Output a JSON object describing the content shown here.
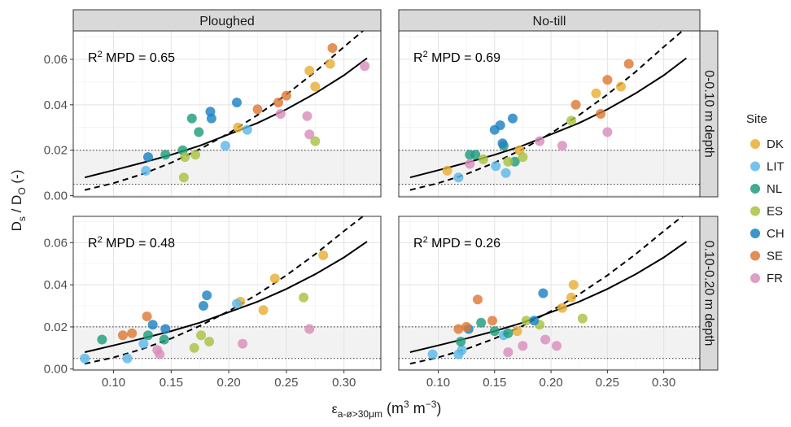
{
  "chart_data": {
    "type": "scatter",
    "columns": [
      "Ploughed",
      "No-till"
    ],
    "rows": [
      "0-0.10 m depth",
      "0.10-0.20 m depth"
    ],
    "ylabel": "Ds / DO (-)",
    "ylabel_parts": {
      "main1": "D",
      "sub1": "s",
      "mid": " / D",
      "sub2": "O",
      "tail": " (-)"
    },
    "xlabel_parts": {
      "main": "ε",
      "sub": "a-ø>30μm",
      "tail": " (m",
      "sup1": "3",
      "mid": " m",
      "sup2": "−3",
      "end": ")"
    },
    "xlim": [
      0.065,
      0.332
    ],
    "ylim": [
      -0.0005,
      0.0725
    ],
    "x_ticks": [
      0.1,
      0.15,
      0.2,
      0.25,
      0.3
    ],
    "x_tick_labels": [
      "0.10",
      "0.15",
      "0.20",
      "0.25",
      "0.30"
    ],
    "y_ticks": [
      0.0,
      0.02,
      0.04,
      0.06
    ],
    "y_tick_labels": [
      "0.00",
      "0.02",
      "0.04",
      "0.06"
    ],
    "thresholds": [
      0.005,
      0.02
    ],
    "grid": true,
    "legend": {
      "title": "Site",
      "placement": "right",
      "entries": [
        {
          "name": "DK",
          "color": "#E8AE33"
        },
        {
          "name": "LIT",
          "color": "#5BB8EA"
        },
        {
          "name": "NL",
          "color": "#1E9E7D"
        },
        {
          "name": "ES",
          "color": "#A8C23F"
        },
        {
          "name": "CH",
          "color": "#1C82C4"
        },
        {
          "name": "SE",
          "color": "#DD7A36"
        },
        {
          "name": "FR",
          "color": "#D98DBC"
        }
      ]
    },
    "curves": {
      "solid": {
        "x": [
          0.075,
          0.1,
          0.125,
          0.15,
          0.175,
          0.2,
          0.225,
          0.25,
          0.275,
          0.3,
          0.32
        ],
        "y": [
          0.008,
          0.0112,
          0.0145,
          0.018,
          0.022,
          0.027,
          0.032,
          0.038,
          0.045,
          0.053,
          0.0605
        ]
      },
      "dashed": {
        "x": [
          0.075,
          0.1,
          0.125,
          0.15,
          0.175,
          0.2,
          0.225,
          0.25,
          0.275,
          0.3,
          0.32
        ],
        "y": [
          0.0025,
          0.0055,
          0.0095,
          0.0145,
          0.0205,
          0.0275,
          0.0355,
          0.0445,
          0.0545,
          0.0655,
          0.074
        ]
      }
    },
    "panels": [
      {
        "column": "Ploughed",
        "row": "0-0.10 m depth",
        "r2_label": "R² MPD = 0.65",
        "points": [
          {
            "site": "DK",
            "x": 0.208,
            "y": 0.03
          },
          {
            "site": "DK",
            "x": 0.27,
            "y": 0.055
          },
          {
            "site": "DK",
            "x": 0.275,
            "y": 0.048
          },
          {
            "site": "DK",
            "x": 0.288,
            "y": 0.058
          },
          {
            "site": "LIT",
            "x": 0.128,
            "y": 0.011
          },
          {
            "site": "LIT",
            "x": 0.197,
            "y": 0.022
          },
          {
            "site": "LIT",
            "x": 0.216,
            "y": 0.029
          },
          {
            "site": "NL",
            "x": 0.145,
            "y": 0.018
          },
          {
            "site": "NL",
            "x": 0.16,
            "y": 0.02
          },
          {
            "site": "NL",
            "x": 0.168,
            "y": 0.034
          },
          {
            "site": "NL",
            "x": 0.174,
            "y": 0.028
          },
          {
            "site": "ES",
            "x": 0.161,
            "y": 0.008
          },
          {
            "site": "ES",
            "x": 0.162,
            "y": 0.017
          },
          {
            "site": "ES",
            "x": 0.171,
            "y": 0.018
          },
          {
            "site": "ES",
            "x": 0.275,
            "y": 0.024
          },
          {
            "site": "CH",
            "x": 0.13,
            "y": 0.017
          },
          {
            "site": "CH",
            "x": 0.184,
            "y": 0.037
          },
          {
            "site": "CH",
            "x": 0.185,
            "y": 0.034
          },
          {
            "site": "CH",
            "x": 0.207,
            "y": 0.041
          },
          {
            "site": "SE",
            "x": 0.225,
            "y": 0.038
          },
          {
            "site": "SE",
            "x": 0.243,
            "y": 0.041
          },
          {
            "site": "SE",
            "x": 0.25,
            "y": 0.044
          },
          {
            "site": "SE",
            "x": 0.29,
            "y": 0.065
          },
          {
            "site": "FR",
            "x": 0.245,
            "y": 0.036
          },
          {
            "site": "FR",
            "x": 0.268,
            "y": 0.035
          },
          {
            "site": "FR",
            "x": 0.27,
            "y": 0.027
          },
          {
            "site": "FR",
            "x": 0.318,
            "y": 0.057
          }
        ]
      },
      {
        "column": "No-till",
        "row": "0-0.10 m depth",
        "r2_label": "R² MPD = 0.69",
        "points": [
          {
            "site": "DK",
            "x": 0.108,
            "y": 0.011
          },
          {
            "site": "DK",
            "x": 0.172,
            "y": 0.02
          },
          {
            "site": "DK",
            "x": 0.24,
            "y": 0.045
          },
          {
            "site": "DK",
            "x": 0.262,
            "y": 0.048
          },
          {
            "site": "LIT",
            "x": 0.118,
            "y": 0.008
          },
          {
            "site": "LIT",
            "x": 0.151,
            "y": 0.013
          },
          {
            "site": "LIT",
            "x": 0.16,
            "y": 0.01
          },
          {
            "site": "NL",
            "x": 0.128,
            "y": 0.018
          },
          {
            "site": "NL",
            "x": 0.133,
            "y": 0.018
          },
          {
            "site": "NL",
            "x": 0.158,
            "y": 0.022
          },
          {
            "site": "NL",
            "x": 0.168,
            "y": 0.015
          },
          {
            "site": "ES",
            "x": 0.14,
            "y": 0.016
          },
          {
            "site": "ES",
            "x": 0.162,
            "y": 0.015
          },
          {
            "site": "ES",
            "x": 0.175,
            "y": 0.017
          },
          {
            "site": "ES",
            "x": 0.218,
            "y": 0.033
          },
          {
            "site": "CH",
            "x": 0.15,
            "y": 0.029
          },
          {
            "site": "CH",
            "x": 0.155,
            "y": 0.031
          },
          {
            "site": "CH",
            "x": 0.157,
            "y": 0.023
          },
          {
            "site": "CH",
            "x": 0.166,
            "y": 0.034
          },
          {
            "site": "SE",
            "x": 0.222,
            "y": 0.04
          },
          {
            "site": "SE",
            "x": 0.244,
            "y": 0.036
          },
          {
            "site": "SE",
            "x": 0.25,
            "y": 0.051
          },
          {
            "site": "SE",
            "x": 0.269,
            "y": 0.058
          },
          {
            "site": "FR",
            "x": 0.128,
            "y": 0.014
          },
          {
            "site": "FR",
            "x": 0.19,
            "y": 0.024
          },
          {
            "site": "FR",
            "x": 0.21,
            "y": 0.022
          },
          {
            "site": "FR",
            "x": 0.25,
            "y": 0.028
          }
        ]
      },
      {
        "column": "Ploughed",
        "row": "0.10-0.20 m depth",
        "r2_label": "R² MPD = 0.48",
        "points": [
          {
            "site": "DK",
            "x": 0.21,
            "y": 0.032
          },
          {
            "site": "DK",
            "x": 0.23,
            "y": 0.028
          },
          {
            "site": "DK",
            "x": 0.24,
            "y": 0.043
          },
          {
            "site": "DK",
            "x": 0.282,
            "y": 0.054
          },
          {
            "site": "LIT",
            "x": 0.075,
            "y": 0.005
          },
          {
            "site": "LIT",
            "x": 0.112,
            "y": 0.005
          },
          {
            "site": "LIT",
            "x": 0.126,
            "y": 0.012
          },
          {
            "site": "LIT",
            "x": 0.207,
            "y": 0.031
          },
          {
            "site": "NL",
            "x": 0.09,
            "y": 0.014
          },
          {
            "site": "NL",
            "x": 0.13,
            "y": 0.016
          },
          {
            "site": "NL",
            "x": 0.144,
            "y": 0.014
          },
          {
            "site": "ES",
            "x": 0.17,
            "y": 0.01
          },
          {
            "site": "ES",
            "x": 0.176,
            "y": 0.016
          },
          {
            "site": "ES",
            "x": 0.183,
            "y": 0.013
          },
          {
            "site": "ES",
            "x": 0.265,
            "y": 0.034
          },
          {
            "site": "CH",
            "x": 0.134,
            "y": 0.021
          },
          {
            "site": "CH",
            "x": 0.145,
            "y": 0.019
          },
          {
            "site": "CH",
            "x": 0.178,
            "y": 0.03
          },
          {
            "site": "CH",
            "x": 0.181,
            "y": 0.035
          },
          {
            "site": "SE",
            "x": 0.108,
            "y": 0.016
          },
          {
            "site": "SE",
            "x": 0.116,
            "y": 0.017
          },
          {
            "site": "SE",
            "x": 0.129,
            "y": 0.025
          },
          {
            "site": "FR",
            "x": 0.138,
            "y": 0.009
          },
          {
            "site": "FR",
            "x": 0.14,
            "y": 0.007
          },
          {
            "site": "FR",
            "x": 0.212,
            "y": 0.012
          },
          {
            "site": "FR",
            "x": 0.27,
            "y": 0.019
          }
        ]
      },
      {
        "column": "No-till",
        "row": "0.10-0.20 m depth",
        "r2_label": "R² MPD = 0.26",
        "points": [
          {
            "site": "DK",
            "x": 0.17,
            "y": 0.018
          },
          {
            "site": "DK",
            "x": 0.21,
            "y": 0.029
          },
          {
            "site": "DK",
            "x": 0.218,
            "y": 0.034
          },
          {
            "site": "DK",
            "x": 0.22,
            "y": 0.04
          },
          {
            "site": "LIT",
            "x": 0.095,
            "y": 0.007
          },
          {
            "site": "LIT",
            "x": 0.118,
            "y": 0.007
          },
          {
            "site": "LIT",
            "x": 0.121,
            "y": 0.009
          },
          {
            "site": "LIT",
            "x": 0.158,
            "y": 0.016
          },
          {
            "site": "NL",
            "x": 0.12,
            "y": 0.013
          },
          {
            "site": "NL",
            "x": 0.138,
            "y": 0.022
          },
          {
            "site": "NL",
            "x": 0.15,
            "y": 0.018
          },
          {
            "site": "NL",
            "x": 0.162,
            "y": 0.017
          },
          {
            "site": "ES",
            "x": 0.178,
            "y": 0.023
          },
          {
            "site": "ES",
            "x": 0.19,
            "y": 0.021
          },
          {
            "site": "ES",
            "x": 0.228,
            "y": 0.024
          },
          {
            "site": "CH",
            "x": 0.127,
            "y": 0.019
          },
          {
            "site": "CH",
            "x": 0.185,
            "y": 0.023
          },
          {
            "site": "CH",
            "x": 0.193,
            "y": 0.036
          },
          {
            "site": "SE",
            "x": 0.118,
            "y": 0.019
          },
          {
            "site": "SE",
            "x": 0.125,
            "y": 0.02
          },
          {
            "site": "SE",
            "x": 0.135,
            "y": 0.033
          },
          {
            "site": "SE",
            "x": 0.148,
            "y": 0.023
          },
          {
            "site": "FR",
            "x": 0.162,
            "y": 0.008
          },
          {
            "site": "FR",
            "x": 0.175,
            "y": 0.011
          },
          {
            "site": "FR",
            "x": 0.195,
            "y": 0.014
          },
          {
            "site": "FR",
            "x": 0.205,
            "y": 0.011
          }
        ]
      }
    ]
  }
}
